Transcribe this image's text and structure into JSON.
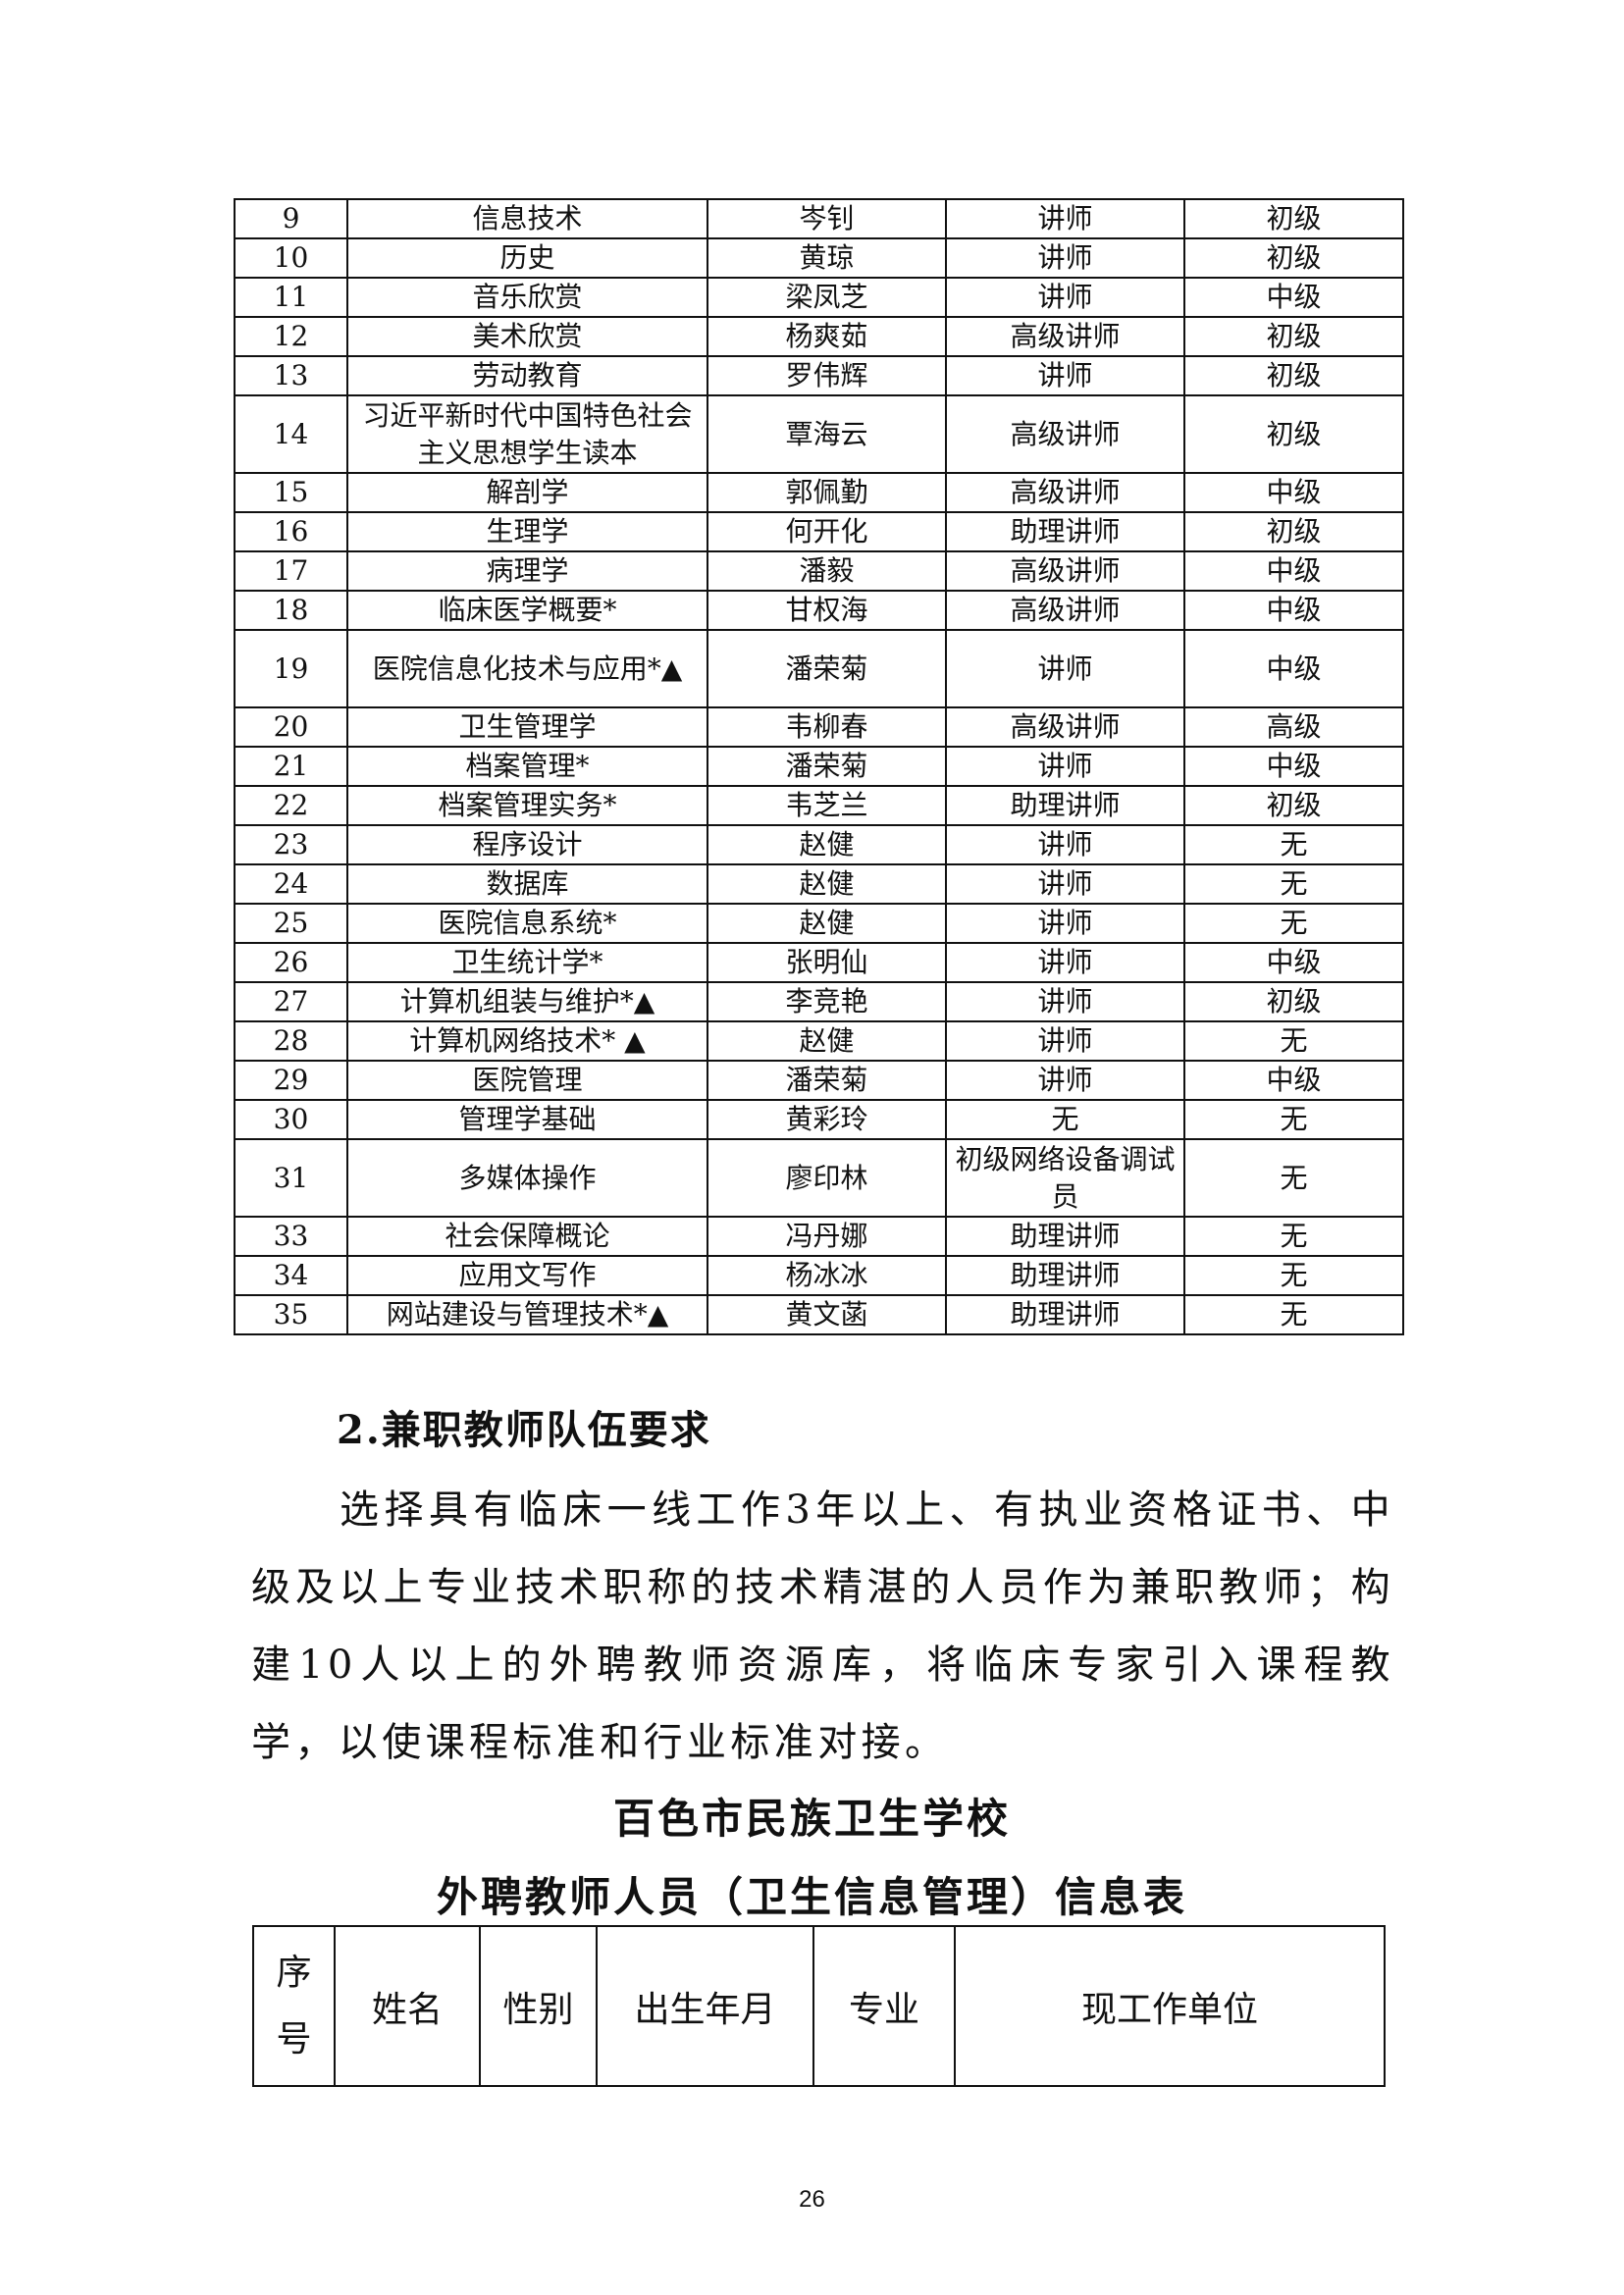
{
  "staff_table": {
    "rows": [
      [
        "9",
        "信息技术",
        "岑钊",
        "讲师",
        "初级"
      ],
      [
        "10",
        "历史",
        "黄琼",
        "讲师",
        "初级"
      ],
      [
        "11",
        "音乐欣赏",
        "梁凤芝",
        "讲师",
        "中级"
      ],
      [
        "12",
        "美术欣赏",
        "杨爽茹",
        "高级讲师",
        "初级"
      ],
      [
        "13",
        "劳动教育",
        "罗伟辉",
        "讲师",
        "初级"
      ],
      [
        "14",
        "习近平新时代中国特色社会主义思想学生读本",
        "覃海云",
        "高级讲师",
        "初级"
      ],
      [
        "15",
        "解剖学",
        "郭佩勤",
        "高级讲师",
        "中级"
      ],
      [
        "16",
        "生理学",
        "何开化",
        "助理讲师",
        "初级"
      ],
      [
        "17",
        "病理学",
        "潘毅",
        "高级讲师",
        "中级"
      ],
      [
        "18",
        "临床医学概要*",
        "甘权海",
        "高级讲师",
        "中级"
      ],
      [
        "19",
        "医院信息化技术与应用*▲",
        "潘荣菊",
        "讲师",
        "中级"
      ],
      [
        "20",
        "卫生管理学",
        "韦柳春",
        "高级讲师",
        "高级"
      ],
      [
        "21",
        "档案管理*",
        "潘荣菊",
        "讲师",
        "中级"
      ],
      [
        "22",
        "档案管理实务*",
        "韦芝兰",
        "助理讲师",
        "初级"
      ],
      [
        "23",
        "程序设计",
        "赵健",
        "讲师",
        "无"
      ],
      [
        "24",
        "数据库",
        "赵健",
        "讲师",
        "无"
      ],
      [
        "25",
        "医院信息系统*",
        "赵健",
        "讲师",
        "无"
      ],
      [
        "26",
        "卫生统计学*",
        "张明仙",
        "讲师",
        "中级"
      ],
      [
        "27",
        "计算机组装与维护*▲",
        "李竞艳",
        "讲师",
        "初级"
      ],
      [
        "28",
        "计算机网络技术* ▲",
        "赵健",
        "讲师",
        "无"
      ],
      [
        "29",
        "医院管理",
        "潘荣菊",
        "讲师",
        "中级"
      ],
      [
        "30",
        "管理学基础",
        "黄彩玲",
        "无",
        "无"
      ],
      [
        "31",
        "多媒体操作",
        "廖印林",
        "初级网络设备调试员",
        "无"
      ],
      [
        "33",
        "社会保障概论",
        "冯丹娜",
        "助理讲师",
        "无"
      ],
      [
        "34",
        "应用文写作",
        "杨冰冰",
        "助理讲师",
        "无"
      ],
      [
        "35",
        "网站建设与管理技术*▲",
        "黄文菡",
        "助理讲师",
        "无"
      ]
    ]
  },
  "section_heading": "2.兼职教师队伍要求",
  "paragraph": "选择具有临床一线工作3年以上、有执业资格证书、中级及以上专业技术职称的技术精湛的人员作为兼职教师；构建10人以上的外聘教师资源库，将临床专家引入课程教学，以使课程标准和行业标准对接。",
  "school_title": "百色市民族卫生学校",
  "table2_title": "外聘教师人员（卫生信息管理）信息表",
  "table2": {
    "headers": [
      "序号",
      "姓名",
      "性别",
      "出生年月",
      "专业",
      "现工作单位"
    ]
  },
  "page_number": "26"
}
